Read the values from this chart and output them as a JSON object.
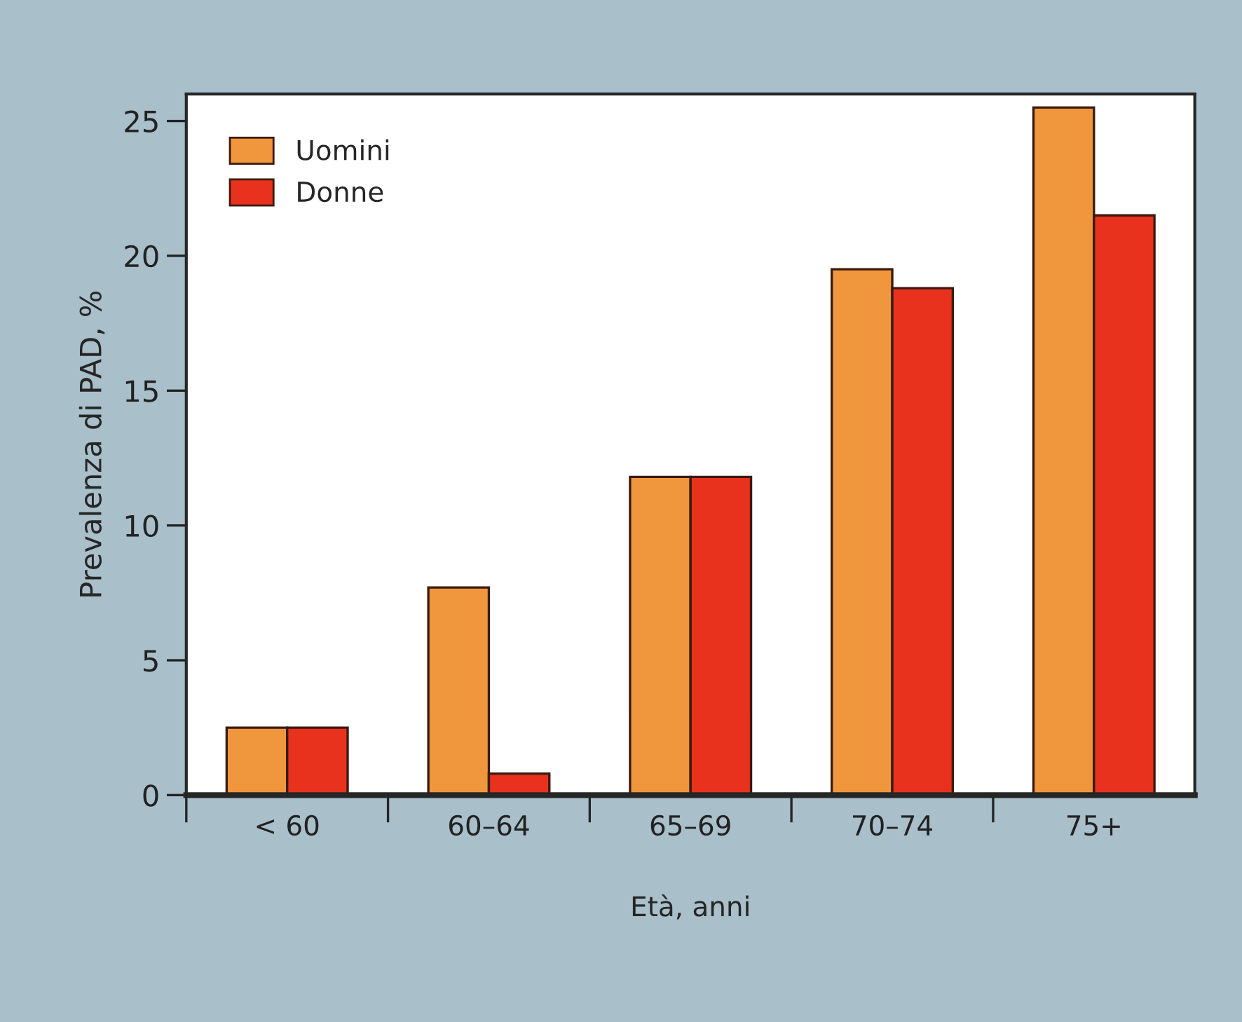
{
  "chart_data": {
    "type": "bar",
    "xlabel": "Età, anni",
    "ylabel": "Prevalenza di PAD, %",
    "categories": [
      "< 60",
      "60–64",
      "65–69",
      "70–74",
      "75+"
    ],
    "series": [
      {
        "name": "Uomini",
        "color": "#f0963c",
        "values": [
          2.5,
          7.7,
          11.8,
          19.5,
          25.5
        ]
      },
      {
        "name": "Donne",
        "color": "#e8321e",
        "values": [
          2.5,
          0.8,
          11.8,
          18.8,
          21.5
        ]
      }
    ],
    "ylim": [
      0,
      26
    ],
    "yticks": [
      0,
      5,
      10,
      15,
      20,
      25
    ],
    "grid": false,
    "legend": "top left"
  }
}
